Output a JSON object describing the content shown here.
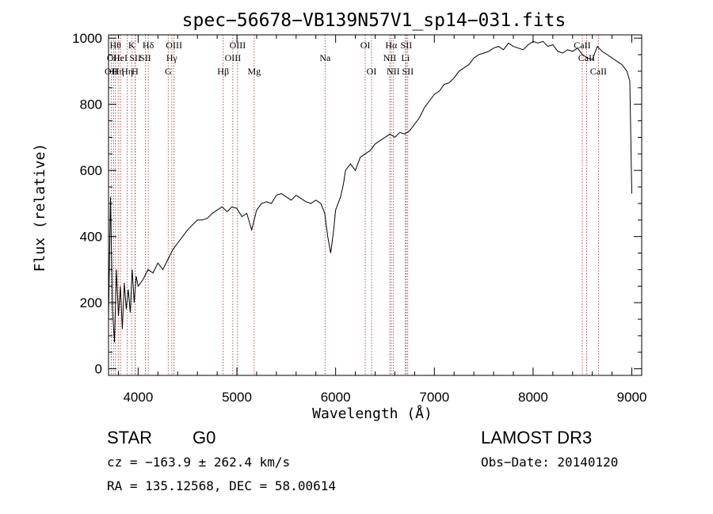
{
  "chart_data": {
    "type": "line",
    "title": "spec−56678−VB139N57V1_sp14−031.fits",
    "xlabel": "Wavelength (Å)",
    "ylabel": "Flux (relative)",
    "xlim": [
      3700,
      9100
    ],
    "ylim": [
      -20,
      1010
    ],
    "xticks": [
      4000,
      5000,
      6000,
      7000,
      8000,
      9000
    ],
    "yticks": [
      0,
      200,
      400,
      600,
      800,
      1000
    ],
    "series": [
      {
        "name": "flux",
        "x": [
          3700,
          3720,
          3740,
          3760,
          3780,
          3800,
          3820,
          3840,
          3860,
          3880,
          3900,
          3920,
          3940,
          3960,
          3980,
          4000,
          4050,
          4100,
          4150,
          4200,
          4250,
          4300,
          4350,
          4400,
          4450,
          4500,
          4550,
          4600,
          4650,
          4700,
          4750,
          4800,
          4850,
          4900,
          4950,
          5000,
          5050,
          5100,
          5150,
          5200,
          5250,
          5300,
          5350,
          5400,
          5450,
          5500,
          5550,
          5600,
          5650,
          5700,
          5750,
          5800,
          5850,
          5890,
          5920,
          5950,
          5980,
          6000,
          6050,
          6080,
          6100,
          6150,
          6200,
          6250,
          6300,
          6350,
          6400,
          6450,
          6500,
          6550,
          6600,
          6650,
          6700,
          6750,
          6800,
          6850,
          6900,
          6950,
          7000,
          7050,
          7100,
          7150,
          7200,
          7250,
          7300,
          7350,
          7400,
          7450,
          7500,
          7550,
          7600,
          7650,
          7700,
          7750,
          7800,
          7850,
          7900,
          7950,
          8000,
          8050,
          8100,
          8150,
          8200,
          8250,
          8300,
          8350,
          8400,
          8450,
          8500,
          8550,
          8600,
          8650,
          8700,
          8750,
          8800,
          8850,
          8900,
          8950,
          8980,
          9000
        ],
        "values": [
          150,
          520,
          180,
          80,
          300,
          160,
          250,
          120,
          260,
          180,
          240,
          170,
          300,
          200,
          280,
          250,
          270,
          300,
          290,
          320,
          300,
          330,
          360,
          380,
          400,
          420,
          435,
          450,
          450,
          455,
          470,
          480,
          490,
          475,
          490,
          485,
          460,
          470,
          420,
          480,
          500,
          505,
          500,
          525,
          530,
          520,
          510,
          525,
          515,
          505,
          500,
          510,
          500,
          470,
          400,
          350,
          420,
          480,
          520,
          560,
          600,
          620,
          600,
          640,
          650,
          660,
          680,
          690,
          700,
          710,
          700,
          715,
          710,
          720,
          740,
          760,
          790,
          810,
          830,
          840,
          860,
          865,
          880,
          900,
          910,
          920,
          940,
          950,
          955,
          960,
          970,
          975,
          965,
          985,
          975,
          970,
          965,
          980,
          990,
          985,
          990,
          975,
          980,
          960,
          955,
          965,
          960,
          970,
          950,
          940,
          935,
          975,
          960,
          950,
          940,
          930,
          920,
          900,
          870,
          530
        ]
      }
    ],
    "lines": [
      {
        "wl": 3727,
        "label": "OII",
        "row": 2
      },
      {
        "wl": 3750,
        "label": "OII",
        "row": 1
      },
      {
        "wl": 3770,
        "label": "Hθ",
        "row": 0
      },
      {
        "wl": 3798,
        "label": "Hη",
        "row": 2
      },
      {
        "wl": 3820,
        "label": "HeI",
        "row": 1
      },
      {
        "wl": 3889,
        "label": "Hη",
        "row": 2
      },
      {
        "wl": 3934,
        "label": "K",
        "row": 0
      },
      {
        "wl": 3968,
        "label": "H",
        "row": 2
      },
      {
        "wl": 3970,
        "label": "SII",
        "row": 1
      },
      {
        "wl": 4102,
        "label": "Hδ",
        "row": 0
      },
      {
        "wl": 4072,
        "label": "SII",
        "row": 1
      },
      {
        "wl": 4304,
        "label": "G",
        "row": 2
      },
      {
        "wl": 4341,
        "label": "Hγ",
        "row": 1
      },
      {
        "wl": 4363,
        "label": "OIII",
        "row": 0
      },
      {
        "wl": 4861,
        "label": "Hβ",
        "row": 2
      },
      {
        "wl": 4959,
        "label": "OIII",
        "row": 1
      },
      {
        "wl": 5007,
        "label": "OIII",
        "row": 0
      },
      {
        "wl": 5175,
        "label": "Mg",
        "row": 2
      },
      {
        "wl": 5893,
        "label": "Na",
        "row": 1
      },
      {
        "wl": 6300,
        "label": "OI",
        "row": 0
      },
      {
        "wl": 6364,
        "label": "OI",
        "row": 2
      },
      {
        "wl": 6548,
        "label": "NII",
        "row": 1
      },
      {
        "wl": 6563,
        "label": "Hα",
        "row": 0
      },
      {
        "wl": 6583,
        "label": "NII",
        "row": 2
      },
      {
        "wl": 6707,
        "label": "Li",
        "row": 1
      },
      {
        "wl": 6716,
        "label": "SII",
        "row": 0
      },
      {
        "wl": 6731,
        "label": "SII",
        "row": 2
      },
      {
        "wl": 8498,
        "label": "CaII",
        "row": 0
      },
      {
        "wl": 8542,
        "label": "CaII",
        "row": 1
      },
      {
        "wl": 8662,
        "label": "CaII",
        "row": 2
      }
    ]
  },
  "info": {
    "class": "STAR",
    "subclass": "G0",
    "survey": "LAMOST DR3",
    "cz": "cz = −163.9 ± 262.4 km/s",
    "obsdate": "Obs−Date: 20140120",
    "radec": "RA = 135.12568, DEC =  58.00614"
  }
}
